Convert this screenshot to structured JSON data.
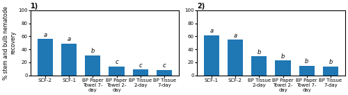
{
  "chart_data": [
    {
      "type": "bar",
      "title": "1)",
      "categories": [
        "SCF-2",
        "SCF-1",
        "BP Paper\nTowel 7-\nday",
        "BP Paper\nTowel 2-\nday",
        "BP Tissue\n2-day",
        "BP Tissue\n7-day"
      ],
      "values": [
        56,
        49,
        31,
        14,
        9,
        8.5
      ],
      "annotations": [
        {
          "category": "SCF-2",
          "text": "a"
        },
        {
          "category": "SCF-1",
          "text": "a"
        },
        {
          "category": "BP Paper\nTowel 7-\nday",
          "text": "b"
        },
        {
          "category": "BP Paper\nTowel 2-\nday",
          "text": "c"
        },
        {
          "category": "BP Tissue\n2-day",
          "text": "c"
        },
        {
          "category": "BP Tissue\n7-day",
          "text": "c"
        }
      ],
      "y_label": "% stem and bulb nematode\nrecovery",
      "ylim": [
        0,
        100
      ],
      "yticks": [
        0,
        20,
        40,
        60,
        80,
        100
      ]
    },
    {
      "type": "bar",
      "title": "2)",
      "categories": [
        "SCF-1",
        "SCF-2",
        "BP Tissue\n2-day",
        "BP Paper\nTowel 2-\nday",
        "BP Paper\nTowel 7-\nday",
        "BP Tissue\n7-day"
      ],
      "values": [
        62,
        55,
        29,
        23,
        15,
        14
      ],
      "annotations": [
        {
          "category": "SCF-1",
          "text": "a"
        },
        {
          "category": "SCF-2",
          "text": "a"
        },
        {
          "category": "BP Tissue\n2-day",
          "text": "b"
        },
        {
          "category": "BP Paper\nTowel 2-\nday",
          "text": "b"
        },
        {
          "category": "BP Paper\nTowel 7-\nday",
          "text": "b"
        },
        {
          "category": "BP Tissue\n7-day",
          "text": "b"
        }
      ],
      "ylim": [
        0,
        100
      ],
      "yticks": [
        0,
        20,
        40,
        60,
        80,
        100
      ]
    }
  ]
}
